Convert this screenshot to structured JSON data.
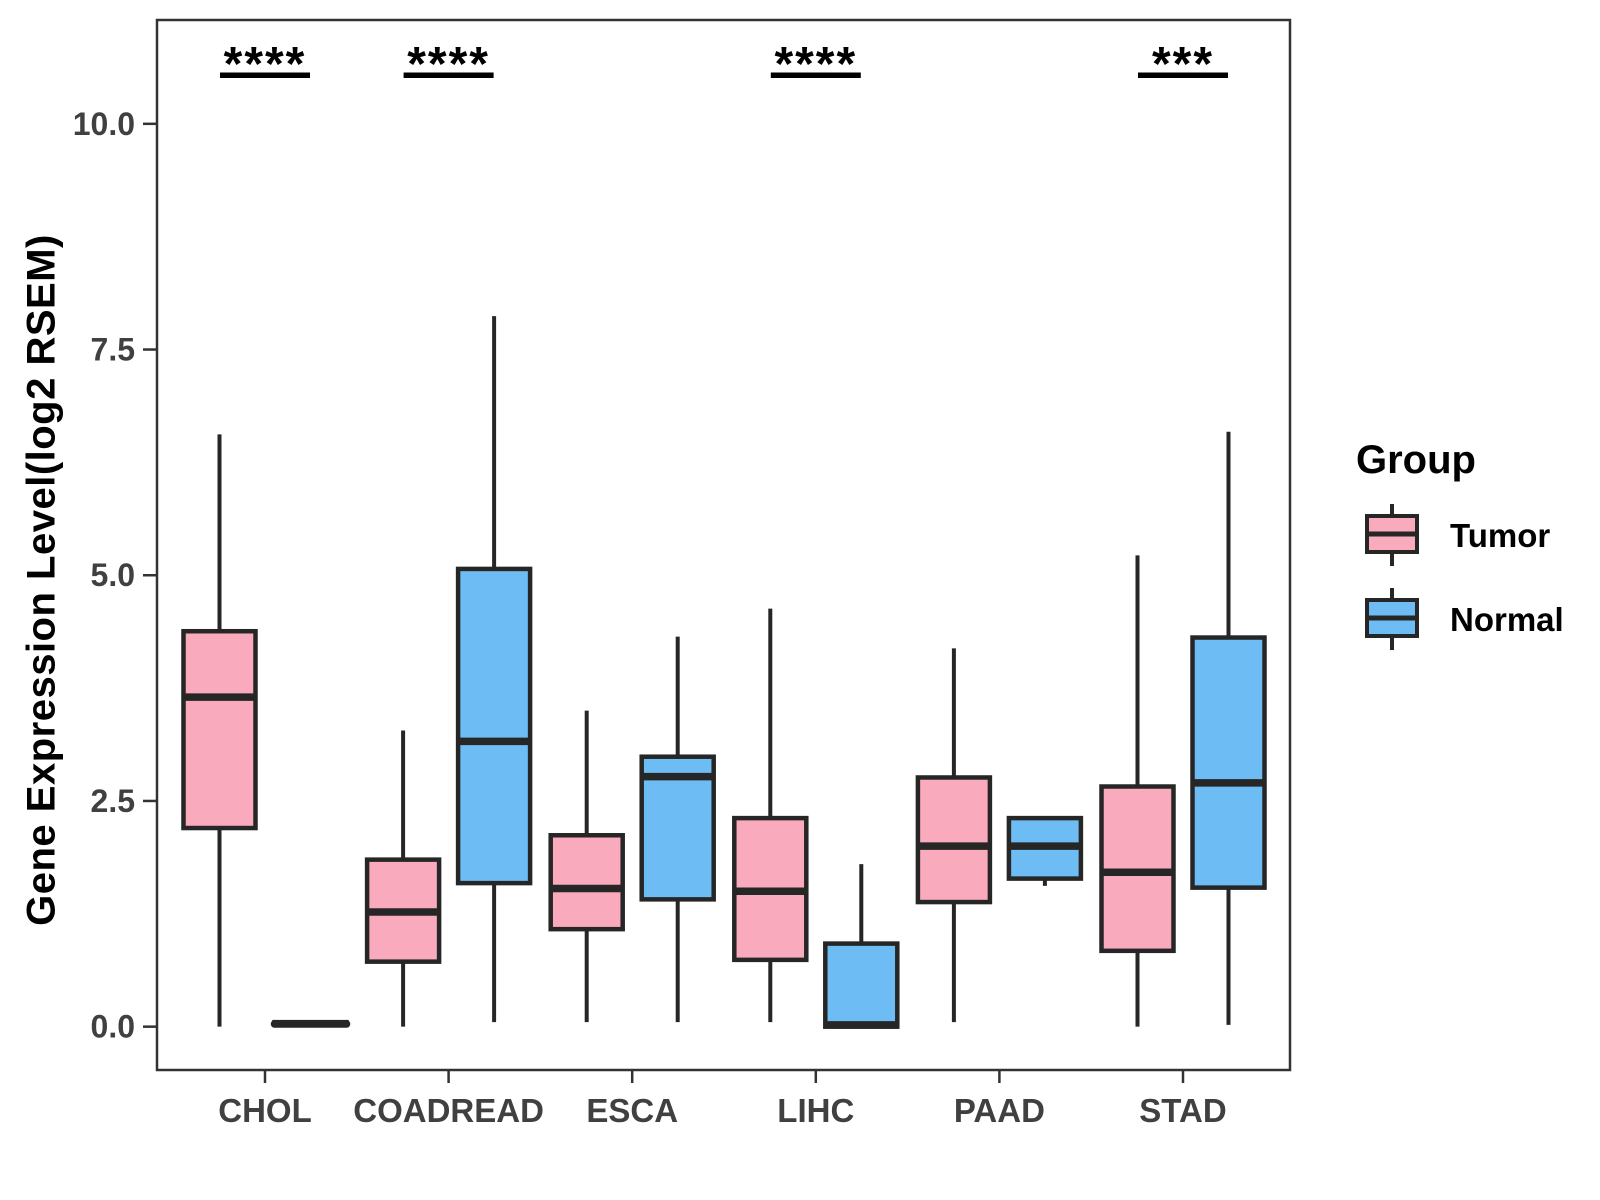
{
  "chart_data": {
    "type": "boxplot",
    "title": "",
    "xlabel": "",
    "ylabel": "Gene Expression Level(log2 RSEM)",
    "categories": [
      "CHOL",
      "COADREAD",
      "ESCA",
      "LIHC",
      "PAAD",
      "STAD"
    ],
    "yticks": [
      0.0,
      2.5,
      5.0,
      7.5,
      10.0
    ],
    "ytick_labels": [
      "0.0",
      "2.5",
      "5.0",
      "7.5",
      "10.0"
    ],
    "ylim": [
      -0.48,
      11.15
    ],
    "grid": false,
    "legend": {
      "title": "Group",
      "position": "right"
    },
    "series": [
      {
        "name": "Tumor",
        "color": "#F9AABD",
        "boxes": [
          {
            "category": "CHOL",
            "min": 0.0,
            "q1": 2.2,
            "median": 3.65,
            "q3": 4.38,
            "max": 6.56
          },
          {
            "category": "COADREAD",
            "min": 0.0,
            "q1": 0.72,
            "median": 1.27,
            "q3": 1.85,
            "max": 3.28
          },
          {
            "category": "ESCA",
            "min": 0.05,
            "q1": 1.08,
            "median": 1.53,
            "q3": 2.12,
            "max": 3.5
          },
          {
            "category": "LIHC",
            "min": 0.05,
            "q1": 0.74,
            "median": 1.5,
            "q3": 2.31,
            "max": 4.63
          },
          {
            "category": "PAAD",
            "min": 0.05,
            "q1": 1.38,
            "median": 2.0,
            "q3": 2.76,
            "max": 4.19
          },
          {
            "category": "STAD",
            "min": 0.0,
            "q1": 0.84,
            "median": 1.71,
            "q3": 2.66,
            "max": 5.22
          }
        ]
      },
      {
        "name": "Normal",
        "color": "#6DBDF4",
        "boxes": [
          {
            "category": "CHOL",
            "min": 0.02,
            "q1": 0.02,
            "median": 0.03,
            "q3": 0.05,
            "max": 0.05
          },
          {
            "category": "COADREAD",
            "min": 0.05,
            "q1": 1.59,
            "median": 3.16,
            "q3": 5.07,
            "max": 7.87
          },
          {
            "category": "ESCA",
            "min": 0.05,
            "q1": 1.41,
            "median": 2.77,
            "q3": 2.99,
            "max": 4.32
          },
          {
            "category": "LIHC",
            "min": 0.0,
            "q1": 0.0,
            "median": 0.02,
            "q3": 0.92,
            "max": 1.8
          },
          {
            "category": "PAAD",
            "min": 1.56,
            "q1": 1.64,
            "median": 2.0,
            "q3": 2.31,
            "max": 2.31
          },
          {
            "category": "STAD",
            "min": 0.02,
            "q1": 1.54,
            "median": 2.7,
            "q3": 4.31,
            "max": 6.59
          }
        ]
      }
    ],
    "significance": [
      {
        "category": "CHOL",
        "label": "****"
      },
      {
        "category": "COADREAD",
        "label": "****"
      },
      {
        "category": "LIHC",
        "label": "****"
      },
      {
        "category": "STAD",
        "label": "***"
      }
    ]
  },
  "palette": {
    "tumor_fill": "#F9AABD",
    "normal_fill": "#6DBDF4",
    "box_stroke": "#262626",
    "panel_border": "#333333",
    "tick_text": "#404040",
    "annotation": "#000000",
    "background": "#ffffff"
  }
}
